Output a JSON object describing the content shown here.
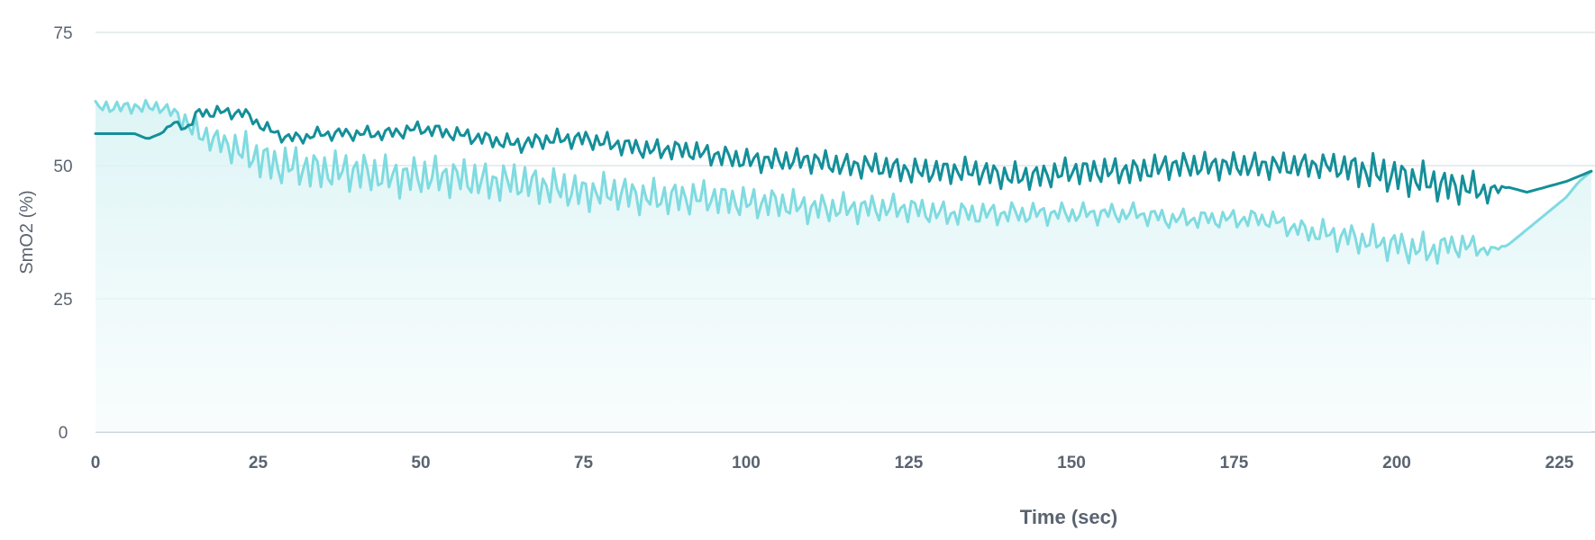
{
  "chart_data": {
    "type": "area",
    "xlabel": "Time (sec)",
    "ylabel": "SmO2 (%)",
    "xlim": [
      0,
      230
    ],
    "ylim": [
      0,
      75
    ],
    "x_ticks": [
      0,
      25,
      50,
      75,
      100,
      125,
      150,
      175,
      200,
      225
    ],
    "y_ticks": [
      0,
      25,
      50,
      75
    ],
    "grid": "horizontal",
    "series": [
      {
        "color": "#148f99",
        "x": [
          0,
          2,
          4,
          6,
          8,
          10,
          12,
          14,
          16,
          18,
          20,
          22,
          24,
          26,
          28,
          30,
          35,
          40,
          45,
          50,
          55,
          60,
          65,
          70,
          75,
          80,
          85,
          90,
          95,
          100,
          105,
          110,
          115,
          120,
          125,
          130,
          135,
          140,
          145,
          150,
          155,
          160,
          165,
          170,
          175,
          180,
          185,
          190,
          195,
          200,
          205,
          208,
          211,
          214,
          217,
          220,
          223,
          226,
          228,
          230
        ],
        "y": [
          56,
          56,
          56,
          56,
          55,
          56,
          58,
          57,
          60,
          60,
          60,
          60,
          59,
          57,
          56,
          55,
          56,
          56,
          56,
          57,
          56,
          55,
          54,
          55,
          55,
          54,
          53,
          53,
          52,
          51,
          51,
          51,
          50,
          50,
          49,
          49,
          49,
          48,
          48,
          49,
          49,
          49,
          50,
          50,
          50,
          50,
          50,
          50,
          49,
          48,
          47,
          46,
          46,
          45,
          46,
          45,
          46,
          47,
          48,
          49
        ],
        "noise": [
          0,
          0,
          0,
          0,
          0,
          0,
          1,
          1,
          2,
          2,
          2,
          2,
          2,
          2,
          2,
          2,
          2,
          2,
          2,
          2,
          2,
          2,
          2,
          2,
          2,
          2,
          2,
          2,
          2,
          2,
          2,
          2,
          2,
          2,
          2,
          2,
          2,
          2,
          2,
          2,
          2,
          2,
          2,
          2,
          2,
          2,
          2,
          2,
          3,
          3,
          3,
          3,
          3,
          2,
          0,
          0,
          0,
          0,
          0,
          0
        ]
      },
      {
        "color": "#7fdbe0",
        "x": [
          0,
          2,
          4,
          6,
          8,
          10,
          12,
          14,
          16,
          18,
          20,
          22,
          24,
          26,
          28,
          30,
          35,
          40,
          45,
          50,
          55,
          60,
          65,
          70,
          75,
          80,
          85,
          90,
          95,
          100,
          105,
          110,
          115,
          120,
          125,
          130,
          135,
          140,
          145,
          150,
          155,
          160,
          165,
          170,
          175,
          180,
          185,
          190,
          195,
          200,
          205,
          208,
          211,
          214,
          217,
          220,
          223,
          226,
          228,
          230
        ],
        "y": [
          61,
          61,
          61,
          61,
          61,
          61,
          60,
          58,
          56,
          55,
          54,
          53,
          52,
          51,
          50,
          50,
          49,
          49,
          48,
          48,
          48,
          47,
          47,
          46,
          45,
          45,
          44,
          44,
          44,
          43,
          43,
          42,
          42,
          42,
          42,
          41,
          41,
          41,
          41,
          41,
          41,
          41,
          40,
          40,
          40,
          40,
          38,
          37,
          36,
          35,
          34,
          35,
          35,
          34,
          35,
          38,
          41,
          44,
          47,
          49
        ],
        "noise": [
          1,
          1,
          1,
          1,
          1,
          1,
          1,
          2,
          2,
          2,
          2,
          3,
          3,
          3,
          3,
          3,
          3,
          3,
          3,
          3,
          3,
          3,
          3,
          3,
          3,
          3,
          3,
          3,
          3,
          3,
          3,
          3,
          3,
          3,
          3,
          3,
          3,
          3,
          3,
          3,
          3,
          3,
          3,
          3,
          3,
          3,
          3,
          4,
          4,
          4,
          4,
          3,
          3,
          1,
          0,
          0,
          0,
          0,
          0,
          0
        ]
      }
    ]
  }
}
